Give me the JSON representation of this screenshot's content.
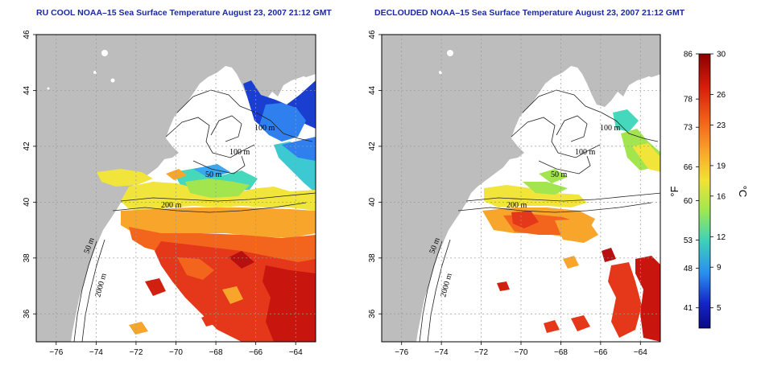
{
  "panels": [
    {
      "title": "RU COOL NOAA–15 Sea Surface Temperature August 23, 2007 21:12 GMT",
      "coverage": "full"
    },
    {
      "title": "DECLOUDED NOAA–15 Sea Surface Temperature August 23, 2007 21:12 GMT",
      "coverage": "declouded"
    }
  ],
  "axes": {
    "lon_ticks": [
      "−76",
      "−74",
      "−72",
      "−70",
      "−68",
      "−66",
      "−64"
    ],
    "lat_ticks": [
      "46",
      "44",
      "42",
      "40",
      "38",
      "36"
    ]
  },
  "contour_labels": [
    "100 m",
    "50 m",
    "100 m",
    "200 m",
    "50 m",
    "2000 m"
  ],
  "colorbar": {
    "fahrenheit_ticks": [
      "86",
      "78",
      "73",
      "66",
      "60",
      "53",
      "48",
      "41"
    ],
    "celsius_ticks": [
      "30",
      "26",
      "23",
      "19",
      "16",
      "12",
      "9",
      "5"
    ],
    "f_label": "°F",
    "c_label": "°C",
    "colors": [
      "#8a0000",
      "#d81c0c",
      "#f4641a",
      "#f8a82a",
      "#f2e232",
      "#9fe850",
      "#3ed2b8",
      "#2a8ef0",
      "#1424c8",
      "#0a0a84"
    ]
  }
}
